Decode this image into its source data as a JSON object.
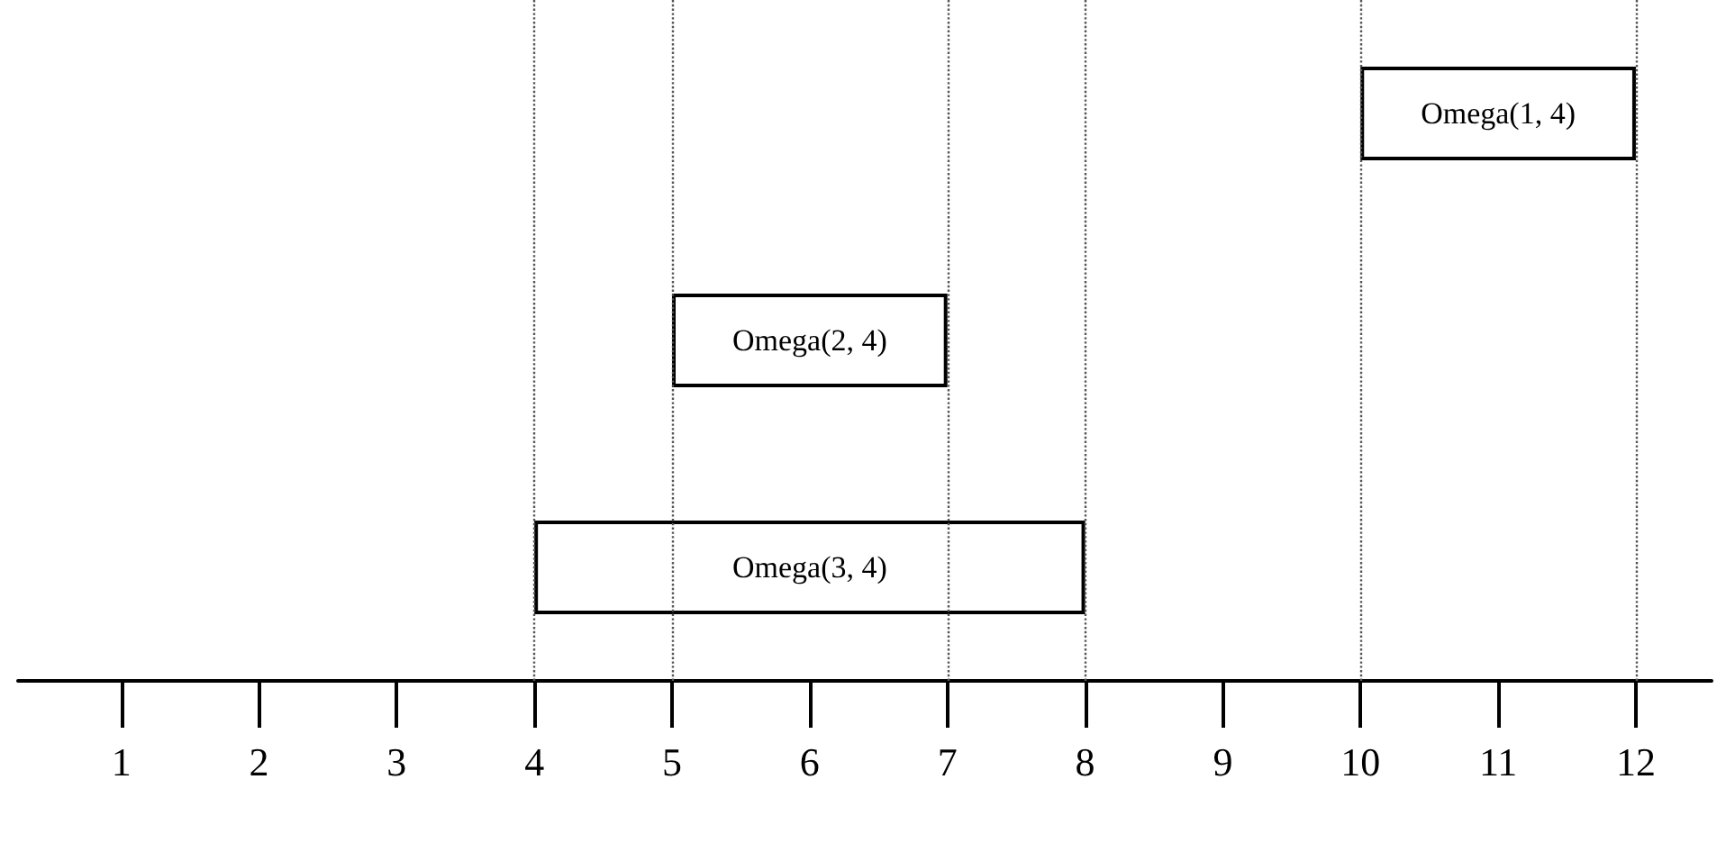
{
  "chart_data": {
    "type": "bar",
    "orientation": "horizontal",
    "categories": [
      "Omega(1, 4)",
      "Omega(2, 4)",
      "Omega(3, 4)"
    ],
    "series": [
      {
        "color": "#ffffff",
        "values": [
          2,
          2,
          4
        ],
        "base": [
          10,
          5,
          4
        ]
      }
    ],
    "xlim": [
      0.25,
      12.55
    ],
    "xticks": [
      1,
      2,
      3,
      4,
      5,
      6,
      7,
      8,
      9,
      10,
      11,
      12
    ],
    "tick_labels": "x",
    "ref_lines": [
      {
        "axis": "x",
        "value": 4,
        "line_style": "dotted",
        "color": "#555555"
      },
      {
        "axis": "x",
        "value": 5,
        "line_style": "dotted",
        "color": "#555555"
      },
      {
        "axis": "x",
        "value": 7,
        "line_style": "dotted",
        "color": "#555555"
      },
      {
        "axis": "x",
        "value": 8,
        "line_style": "dotted",
        "color": "#555555"
      },
      {
        "axis": "x",
        "value": 10,
        "line_style": "dotted",
        "color": "#555555"
      },
      {
        "axis": "x",
        "value": 12,
        "line_style": "dotted",
        "color": "#555555"
      }
    ]
  }
}
